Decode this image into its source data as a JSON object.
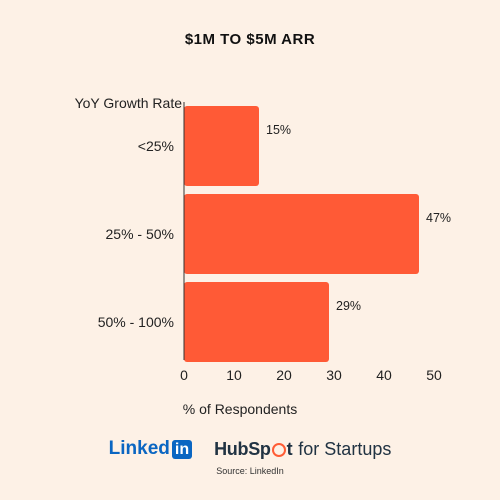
{
  "chart_data": {
    "type": "bar",
    "orientation": "horizontal",
    "title": "$1M TO $5M ARR",
    "ylabel": "YoY Growth Rate",
    "xlabel": "% of Respondents",
    "categories": [
      "<25%",
      "25% - 50%",
      "50% - 100%"
    ],
    "values": [
      15,
      47,
      29
    ],
    "data_labels": [
      "15%",
      "47%",
      "29%"
    ],
    "xlim": [
      0,
      50
    ],
    "xticks": [
      0,
      10,
      20,
      30,
      40,
      50
    ],
    "grid": false,
    "bar_color": "#ff5a36"
  },
  "footer": {
    "linkedin_word": "Linked",
    "linkedin_box": "in",
    "hubspot_pre": "Hub",
    "hubspot_post": "t",
    "hubspot_tail": "for Startups",
    "source": "Source: LinkedIn"
  },
  "colors": {
    "background": "#fdf1e6",
    "bar": "#ff5a36",
    "linkedin_blue": "#0a66c2",
    "hubspot_orange": "#ff5c35"
  },
  "icons": [
    "linkedin-logo",
    "hubspot-logo"
  ]
}
